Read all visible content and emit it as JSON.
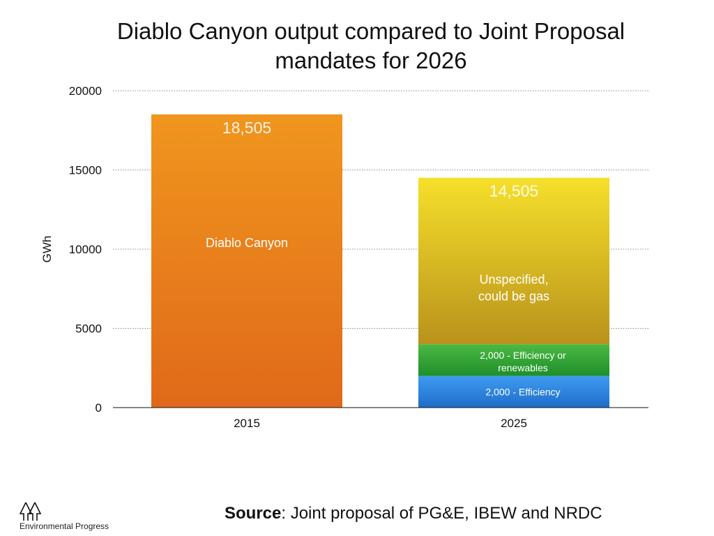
{
  "title": {
    "line1": "Diablo Canyon output compared to Joint Proposal",
    "line2": "mandates for 2026"
  },
  "chart_data": {
    "type": "bar",
    "stacked": true,
    "categories": [
      "2015",
      "2025"
    ],
    "ylabel": "GWh",
    "ylim": [
      0,
      20000
    ],
    "yticks": [
      "0",
      "5000",
      "10000",
      "15000",
      "20000"
    ],
    "grid": true,
    "series": [
      {
        "name": "Diablo Canyon",
        "values": [
          18505,
          0
        ],
        "color_top": "#f0961e",
        "color_bottom": "#e0691a"
      },
      {
        "name": "2,000 - Efficiency",
        "values": [
          0,
          2000
        ],
        "color_top": "#3f9bf0",
        "color_bottom": "#1f6dc9"
      },
      {
        "name": "2,000 - Efficiency or renewables",
        "values": [
          0,
          2000
        ],
        "color_top": "#4cb944",
        "color_bottom": "#1e8f2a"
      },
      {
        "name": "Unspecified, could be gas",
        "values": [
          0,
          10505
        ],
        "color_top": "#f6e02b",
        "color_bottom": "#b9921c"
      }
    ],
    "totals": [
      {
        "category": "2015",
        "label": "18,505"
      },
      {
        "category": "2025",
        "label": "14,505"
      }
    ],
    "segment_labels": {
      "diablo": "Diablo Canyon",
      "efficiency": "2,000 - Efficiency",
      "renewables_line1": "2,000 - Efficiency or",
      "renewables_line2": "renewables",
      "unspecified_line1": "Unspecified,",
      "unspecified_line2": "could be gas"
    }
  },
  "footer": {
    "logo_text": "Environmental Progress",
    "source_bold": "Source",
    "source_rest": ": Joint proposal of PG&E, IBEW and NRDC"
  }
}
